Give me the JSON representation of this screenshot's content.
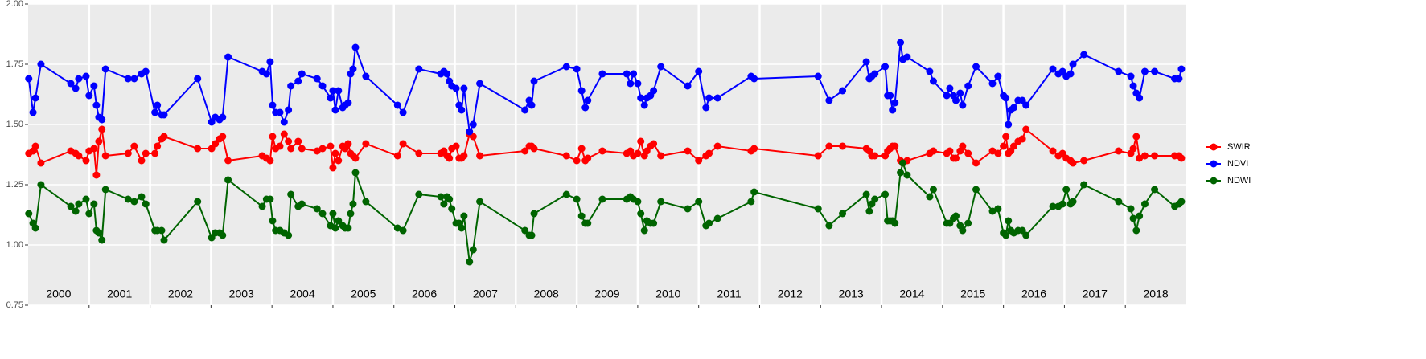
{
  "chart_data": {
    "type": "line",
    "x": [
      2000.01,
      2000.08,
      2000.12,
      2000.21,
      2000.7,
      2000.78,
      2000.83,
      2000.95,
      2001.0,
      2001.08,
      2001.12,
      2001.16,
      2001.21,
      2001.27,
      2001.64,
      2001.74,
      2001.86,
      2001.93,
      2002.08,
      2002.12,
      2002.19,
      2002.23,
      2002.78,
      2003.01,
      2003.07,
      2003.14,
      2003.19,
      2003.28,
      2003.84,
      2003.91,
      2003.97,
      2004.01,
      2004.06,
      2004.13,
      2004.2,
      2004.27,
      2004.31,
      2004.43,
      2004.49,
      2004.74,
      2004.83,
      2004.96,
      2005.0,
      2005.04,
      2005.09,
      2005.16,
      2005.2,
      2005.25,
      2005.29,
      2005.33,
      2005.37,
      2005.54,
      2006.06,
      2006.15,
      2006.41,
      2006.77,
      2006.82,
      2006.87,
      2006.91,
      2006.95,
      2007.02,
      2007.07,
      2007.11,
      2007.15,
      2007.24,
      2007.3,
      2007.41,
      2008.15,
      2008.22,
      2008.26,
      2008.3,
      2008.83,
      2009.0,
      2009.08,
      2009.14,
      2009.18,
      2009.42,
      2009.82,
      2009.88,
      2009.93,
      2010.0,
      2010.05,
      2010.11,
      2010.15,
      2010.21,
      2010.26,
      2010.38,
      2010.82,
      2011.0,
      2011.12,
      2011.17,
      2011.31,
      2011.86,
      2011.91,
      2012.96,
      2013.14,
      2013.36,
      2013.75,
      2013.8,
      2013.84,
      2013.89,
      2014.06,
      2014.1,
      2014.14,
      2014.18,
      2014.22,
      2014.31,
      2014.35,
      2014.42,
      2014.79,
      2014.85,
      2015.07,
      2015.12,
      2015.18,
      2015.22,
      2015.29,
      2015.33,
      2015.42,
      2015.55,
      2015.82,
      2015.91,
      2016.0,
      2016.04,
      2016.08,
      2016.12,
      2016.17,
      2016.24,
      2016.31,
      2016.37,
      2016.81,
      2016.9,
      2016.97,
      2017.03,
      2017.1,
      2017.14,
      2017.32,
      2017.89,
      2018.09,
      2018.13,
      2018.18,
      2018.23,
      2018.32,
      2018.48,
      2018.81,
      2018.88,
      2018.92
    ],
    "series": [
      {
        "name": "SWIR",
        "color": "#ff0000",
        "values": [
          1.38,
          1.39,
          1.41,
          1.34,
          1.39,
          1.38,
          1.37,
          1.35,
          1.39,
          1.4,
          1.29,
          1.43,
          1.48,
          1.37,
          1.38,
          1.41,
          1.35,
          1.38,
          1.38,
          1.41,
          1.44,
          1.45,
          1.4,
          1.4,
          1.42,
          1.44,
          1.45,
          1.35,
          1.37,
          1.36,
          1.35,
          1.45,
          1.4,
          1.41,
          1.46,
          1.43,
          1.4,
          1.43,
          1.4,
          1.39,
          1.4,
          1.41,
          1.32,
          1.38,
          1.35,
          1.41,
          1.4,
          1.42,
          1.38,
          1.37,
          1.36,
          1.42,
          1.37,
          1.42,
          1.38,
          1.38,
          1.39,
          1.37,
          1.36,
          1.4,
          1.41,
          1.36,
          1.36,
          1.37,
          1.46,
          1.45,
          1.37,
          1.39,
          1.41,
          1.41,
          1.4,
          1.37,
          1.35,
          1.4,
          1.35,
          1.36,
          1.39,
          1.38,
          1.39,
          1.37,
          1.38,
          1.43,
          1.37,
          1.39,
          1.41,
          1.42,
          1.37,
          1.39,
          1.35,
          1.37,
          1.38,
          1.41,
          1.39,
          1.4,
          1.37,
          1.41,
          1.41,
          1.4,
          1.39,
          1.37,
          1.37,
          1.37,
          1.39,
          1.4,
          1.41,
          1.41,
          1.35,
          1.34,
          1.35,
          1.38,
          1.39,
          1.38,
          1.39,
          1.36,
          1.36,
          1.39,
          1.41,
          1.38,
          1.34,
          1.39,
          1.38,
          1.41,
          1.45,
          1.38,
          1.39,
          1.41,
          1.43,
          1.44,
          1.48,
          1.39,
          1.37,
          1.38,
          1.36,
          1.35,
          1.34,
          1.35,
          1.39,
          1.38,
          1.4,
          1.45,
          1.36,
          1.37,
          1.37,
          1.37,
          1.37,
          1.36
        ]
      },
      {
        "name": "NDVI",
        "color": "#0000ff",
        "values": [
          1.69,
          1.55,
          1.61,
          1.75,
          1.67,
          1.65,
          1.69,
          1.7,
          1.62,
          1.66,
          1.58,
          1.53,
          1.52,
          1.73,
          1.69,
          1.69,
          1.71,
          1.72,
          1.55,
          1.58,
          1.54,
          1.54,
          1.69,
          1.51,
          1.53,
          1.52,
          1.53,
          1.78,
          1.72,
          1.71,
          1.76,
          1.58,
          1.55,
          1.55,
          1.51,
          1.56,
          1.66,
          1.68,
          1.71,
          1.69,
          1.66,
          1.61,
          1.64,
          1.56,
          1.64,
          1.57,
          1.58,
          1.59,
          1.71,
          1.73,
          1.82,
          1.7,
          1.58,
          1.55,
          1.73,
          1.71,
          1.72,
          1.71,
          1.68,
          1.66,
          1.65,
          1.58,
          1.56,
          1.65,
          1.47,
          1.5,
          1.67,
          1.56,
          1.6,
          1.58,
          1.68,
          1.74,
          1.73,
          1.64,
          1.57,
          1.6,
          1.71,
          1.71,
          1.67,
          1.71,
          1.67,
          1.61,
          1.58,
          1.61,
          1.62,
          1.64,
          1.74,
          1.66,
          1.72,
          1.57,
          1.61,
          1.61,
          1.7,
          1.69,
          1.7,
          1.6,
          1.64,
          1.76,
          1.69,
          1.7,
          1.71,
          1.74,
          1.62,
          1.62,
          1.56,
          1.59,
          1.84,
          1.77,
          1.78,
          1.72,
          1.68,
          1.62,
          1.65,
          1.62,
          1.6,
          1.63,
          1.58,
          1.66,
          1.74,
          1.67,
          1.7,
          1.62,
          1.61,
          1.5,
          1.56,
          1.57,
          1.6,
          1.6,
          1.58,
          1.73,
          1.71,
          1.72,
          1.7,
          1.71,
          1.75,
          1.79,
          1.72,
          1.7,
          1.66,
          1.63,
          1.61,
          1.72,
          1.72,
          1.69,
          1.69,
          1.73
        ]
      },
      {
        "name": "NDWI",
        "color": "#006400",
        "values": [
          1.13,
          1.09,
          1.07,
          1.25,
          1.16,
          1.14,
          1.17,
          1.19,
          1.13,
          1.17,
          1.06,
          1.05,
          1.02,
          1.23,
          1.19,
          1.18,
          1.2,
          1.17,
          1.06,
          1.06,
          1.06,
          1.02,
          1.18,
          1.03,
          1.05,
          1.05,
          1.04,
          1.27,
          1.16,
          1.19,
          1.19,
          1.1,
          1.06,
          1.06,
          1.05,
          1.04,
          1.21,
          1.16,
          1.17,
          1.15,
          1.13,
          1.08,
          1.13,
          1.07,
          1.1,
          1.08,
          1.07,
          1.07,
          1.13,
          1.17,
          1.3,
          1.18,
          1.07,
          1.06,
          1.21,
          1.2,
          1.17,
          1.2,
          1.19,
          1.15,
          1.09,
          1.09,
          1.07,
          1.12,
          0.93,
          0.98,
          1.18,
          1.06,
          1.04,
          1.04,
          1.13,
          1.21,
          1.19,
          1.12,
          1.09,
          1.09,
          1.19,
          1.19,
          1.2,
          1.19,
          1.18,
          1.13,
          1.06,
          1.1,
          1.09,
          1.09,
          1.18,
          1.15,
          1.18,
          1.08,
          1.09,
          1.11,
          1.18,
          1.22,
          1.15,
          1.08,
          1.13,
          1.21,
          1.14,
          1.17,
          1.19,
          1.21,
          1.1,
          1.1,
          1.1,
          1.09,
          1.3,
          1.34,
          1.29,
          1.2,
          1.23,
          1.09,
          1.09,
          1.11,
          1.12,
          1.08,
          1.06,
          1.09,
          1.23,
          1.14,
          1.15,
          1.05,
          1.04,
          1.1,
          1.06,
          1.05,
          1.06,
          1.06,
          1.04,
          1.16,
          1.16,
          1.17,
          1.23,
          1.17,
          1.18,
          1.25,
          1.18,
          1.15,
          1.11,
          1.06,
          1.12,
          1.17,
          1.23,
          1.16,
          1.17,
          1.18
        ]
      }
    ],
    "xlim": [
      2000,
      2019
    ],
    "xticks": [
      {
        "value": 2000.5,
        "label": "2000"
      },
      {
        "value": 2001.5,
        "label": "2001"
      },
      {
        "value": 2002.5,
        "label": "2002"
      },
      {
        "value": 2003.5,
        "label": "2003"
      },
      {
        "value": 2004.5,
        "label": "2004"
      },
      {
        "value": 2005.5,
        "label": "2005"
      },
      {
        "value": 2006.5,
        "label": "2006"
      },
      {
        "value": 2007.5,
        "label": "2007"
      },
      {
        "value": 2008.5,
        "label": "2008"
      },
      {
        "value": 2009.5,
        "label": "2009"
      },
      {
        "value": 2010.5,
        "label": "2010"
      },
      {
        "value": 2011.5,
        "label": "2011"
      },
      {
        "value": 2012.5,
        "label": "2012"
      },
      {
        "value": 2013.5,
        "label": "2013"
      },
      {
        "value": 2014.5,
        "label": "2014"
      },
      {
        "value": 2015.5,
        "label": "2015"
      },
      {
        "value": 2016.5,
        "label": "2016"
      },
      {
        "value": 2017.5,
        "label": "2017"
      },
      {
        "value": 2018.5,
        "label": "2018"
      }
    ],
    "xgrid": [
      2001,
      2002,
      2003,
      2004,
      2005,
      2006,
      2007,
      2008,
      2009,
      2010,
      2011,
      2012,
      2013,
      2014,
      2015,
      2016,
      2017,
      2018
    ],
    "ylim": [
      0.75,
      2.0
    ],
    "yticks": [
      0.75,
      {
        "value": 1,
        "label": "1.00"
      },
      1.25,
      {
        "value": 1.5,
        "label": "1.50"
      },
      1.75,
      {
        "value": 2,
        "label": "2.00"
      }
    ],
    "grid": true,
    "legend_position": "right"
  }
}
